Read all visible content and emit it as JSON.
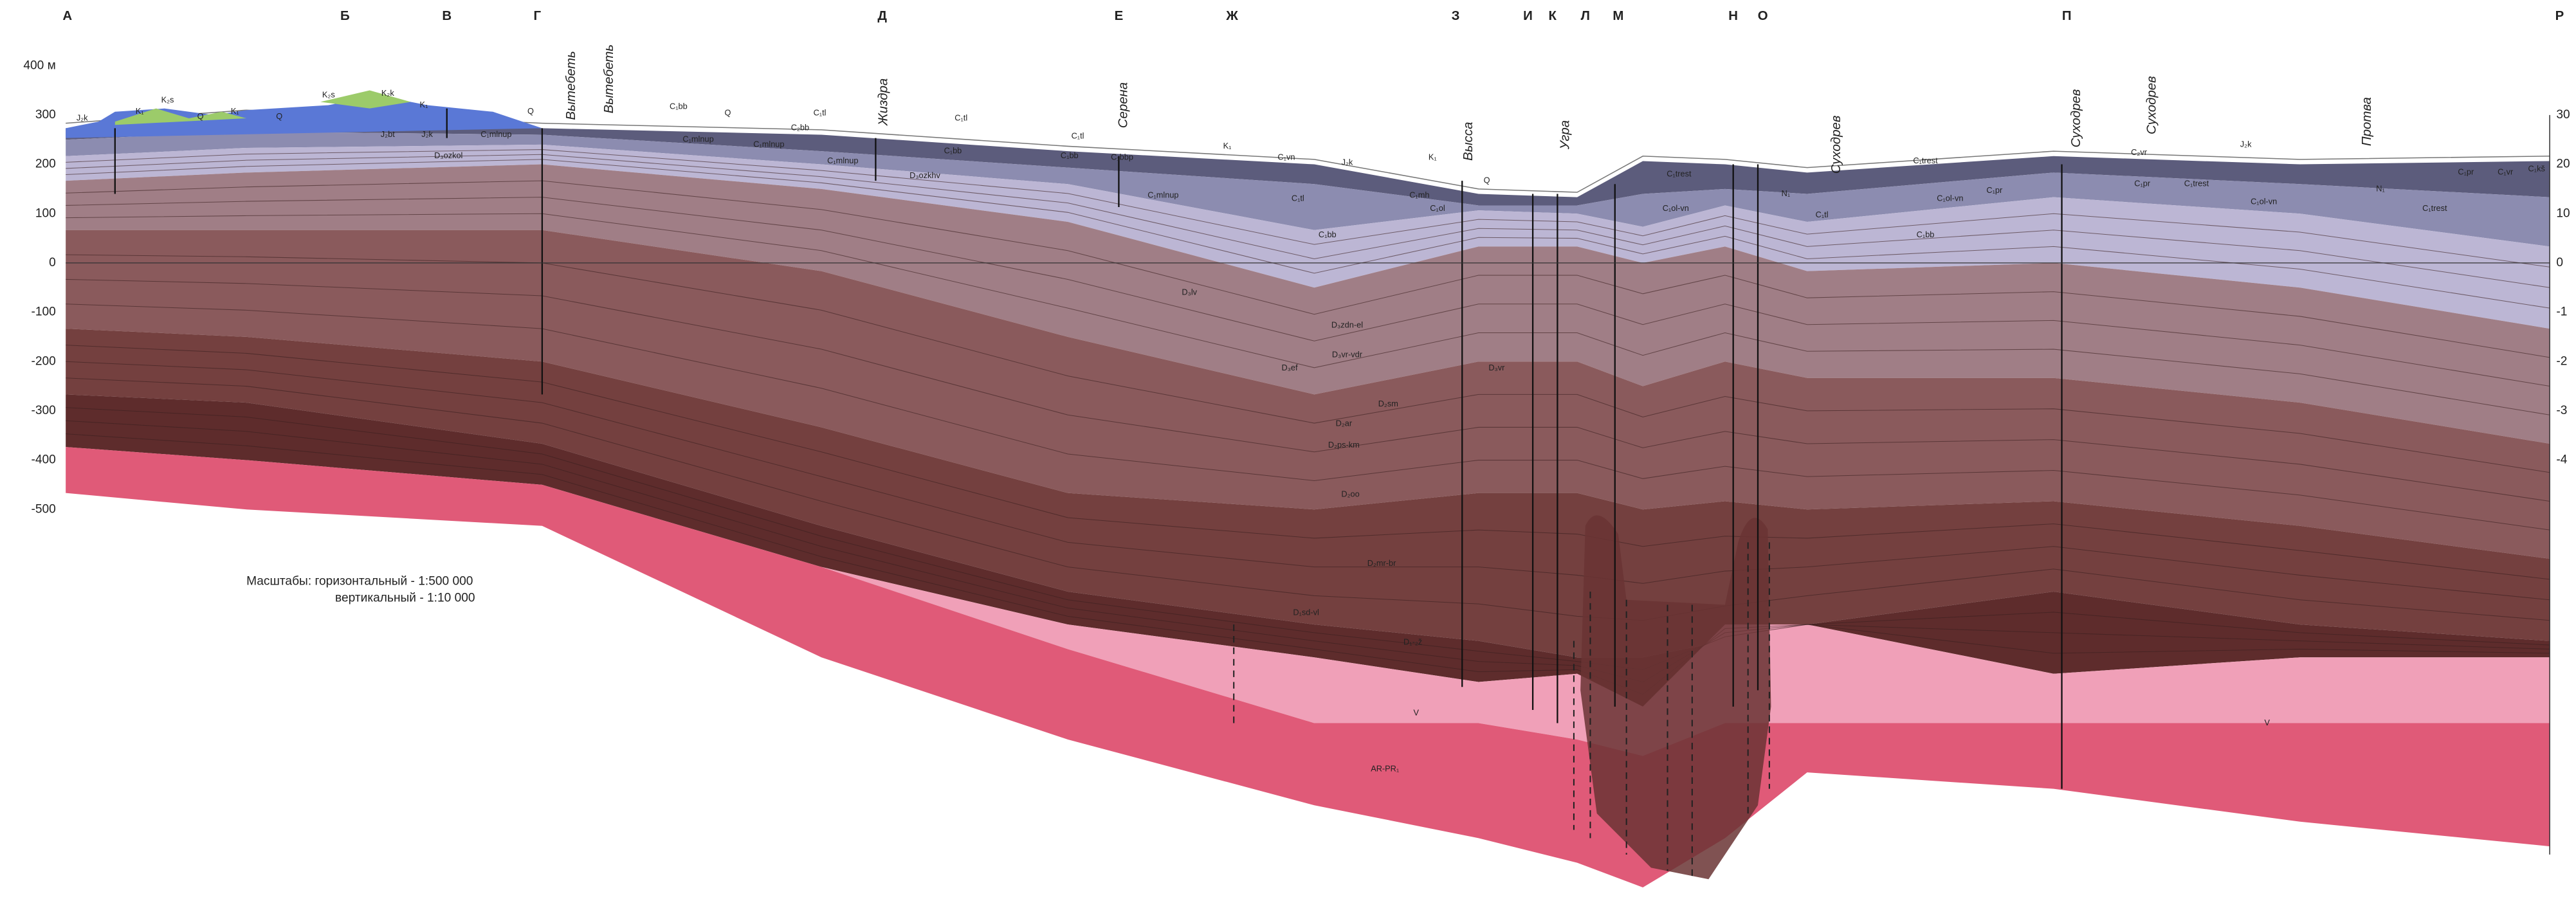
{
  "top_points": [
    "А",
    "Б",
    "В",
    "Г",
    "Д",
    "Е",
    "Ж",
    "З",
    "И",
    "К",
    "Л",
    "М",
    "Н",
    "О",
    "П",
    "Р"
  ],
  "left_axis": [
    "400 м",
    "300",
    "200",
    "100",
    "0",
    "-100",
    "-200",
    "-300",
    "-400",
    "-500"
  ],
  "right_axis": [
    "30",
    "20",
    "10",
    "0",
    "-1",
    "-2",
    "-3",
    "-4"
  ],
  "wells": [
    "Вытебеть",
    "Вытебеть",
    "Жиздра",
    "Серена",
    "Высса",
    "Угра",
    "Суходрев",
    "Суходрев",
    "Суходрев",
    "Протва"
  ],
  "formations": [
    "J₂k",
    "K₁",
    "K₂s",
    "Q",
    "K₁",
    "Q",
    "K₂s",
    "K₂k",
    "K₁",
    "J₂bt",
    "J₂k",
    "C₁mlnup",
    "Q",
    "D₃ozkol",
    "C₁bb",
    "Q",
    "C₁tl",
    "C₂bb",
    "C₁mlnup",
    "C₁mlnup",
    "C₁mlnup",
    "C₁tl",
    "C₁bb",
    "D₃ozkhv",
    "C₁tl",
    "C₁bb",
    "C₁bbp",
    "C₁mlnup",
    "K₁",
    "C₁vn",
    "J₂k",
    "K₁",
    "Q",
    "C₁tl",
    "C₁mh",
    "C₁ol",
    "C₁bb",
    "C₁trest",
    "C₁ol-vn",
    "N₁",
    "C₁tl",
    "C₁bb",
    "C₁trest",
    "C₁ol-vn",
    "C₁pr",
    "C₂vr",
    "C₁pr",
    "C₁trest",
    "J₂k",
    "C₁ol-vn",
    "N₁",
    "C₁trest",
    "C₁pr",
    "C₁vr",
    "C₁kš",
    "D₃lv",
    "D₃zdn-el",
    "D₃vr-vdr",
    "D₃ef",
    "D₃vr",
    "D₂sm",
    "D₂ar",
    "D₂ps-km",
    "D₂oo",
    "D₂mr-br",
    "D₁sd-vl",
    "D₁-₂ž",
    "V",
    "V",
    "AR-PR₁"
  ],
  "scale_note": {
    "title": "Масштабы: горизонтальный  -  1:500 000",
    "vertical": "вертикальный -  1:10 000"
  }
}
